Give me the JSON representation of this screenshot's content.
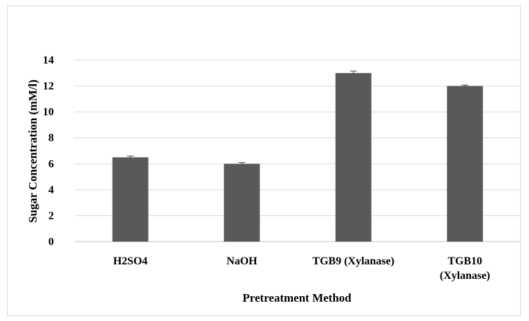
{
  "chart_data": {
    "type": "bar",
    "title": "",
    "xlabel": "Pretreatment Method",
    "ylabel": "Sugar Concentration (mM/l)",
    "categories": [
      [
        "H2SO4"
      ],
      [
        "NaOH"
      ],
      [
        "TGB9 (Xylanase)"
      ],
      [
        "TGB10",
        "(Xylanase)"
      ]
    ],
    "values": [
      6.5,
      6.0,
      13.0,
      12.0
    ],
    "errors": [
      0.1,
      0.1,
      0.15,
      0.07
    ],
    "ylim": [
      0,
      14
    ],
    "yticks": [
      0,
      2,
      4,
      6,
      8,
      10,
      12,
      14
    ],
    "grid": true,
    "legend": "none",
    "colors": {
      "bar": "#595959",
      "grid": "#d9d9d9",
      "axis": "#bfbfbf",
      "error_bar": "#404040"
    }
  }
}
